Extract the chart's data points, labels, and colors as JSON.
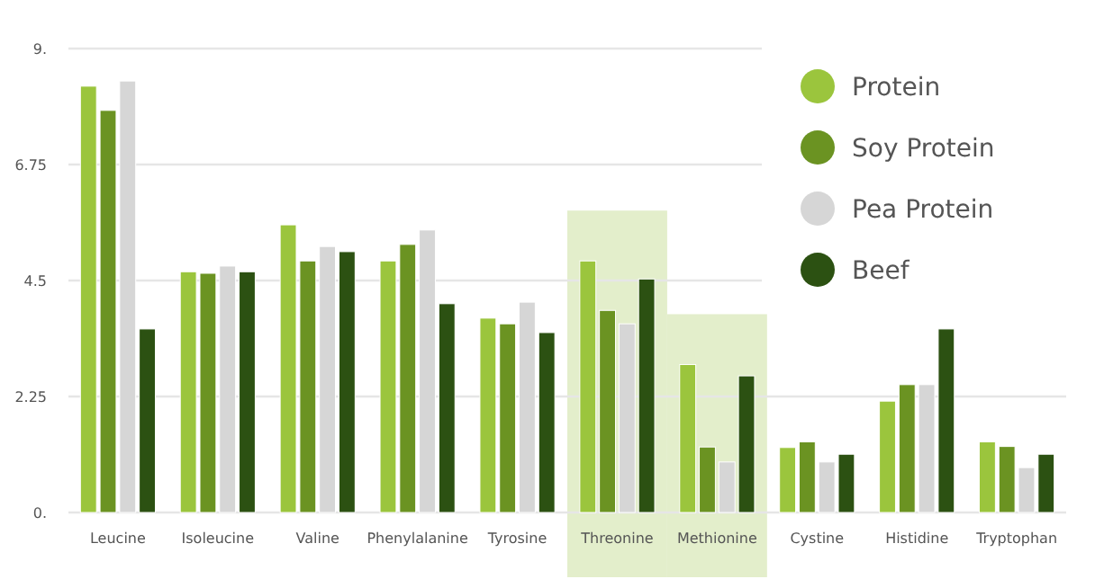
{
  "chart_data": {
    "type": "bar",
    "categories": [
      "Leucine",
      "Isoleucine",
      "Valine",
      "Phenylalanine",
      "Tyrosine",
      "Threonine",
      "Methionine",
      "Cystine",
      "Histidine",
      "Tryptophan"
    ],
    "series": [
      {
        "name": "Protein",
        "color": "#9bc53d",
        "values": [
          8.27,
          4.67,
          5.58,
          4.88,
          3.77,
          4.88,
          2.87,
          1.26,
          2.16,
          1.37
        ]
      },
      {
        "name": "Soy Protein",
        "color": "#6b9322",
        "values": [
          7.8,
          4.64,
          4.88,
          5.2,
          3.66,
          3.92,
          1.27,
          1.37,
          2.48,
          1.28
        ]
      },
      {
        "name": "Pea Protein",
        "color": "#d6d6d6",
        "values": [
          8.37,
          4.78,
          5.16,
          5.48,
          4.08,
          3.66,
          0.98,
          0.98,
          2.48,
          0.87
        ]
      },
      {
        "name": "Beef",
        "color": "#2c5112",
        "values": [
          3.56,
          4.67,
          5.06,
          4.05,
          3.49,
          4.53,
          2.65,
          1.13,
          3.56,
          1.13
        ]
      }
    ],
    "ylim": [
      0,
      9
    ],
    "yticks": [
      {
        "value": 0,
        "label": "0."
      },
      {
        "value": 2.25,
        "label": "2.25"
      },
      {
        "value": 4.5,
        "label": "4.5"
      },
      {
        "value": 6.75,
        "label": "6.75"
      },
      {
        "value": 9,
        "label": "9."
      }
    ],
    "grid": "y",
    "legend": "top right",
    "bands": [
      {
        "axis": "x",
        "from": "Threonine",
        "to": "Threonine",
        "color": "#e3eecb"
      },
      {
        "axis": "x",
        "from": "Methionine",
        "to": "Methionine",
        "color": "#e3eecb"
      }
    ]
  }
}
